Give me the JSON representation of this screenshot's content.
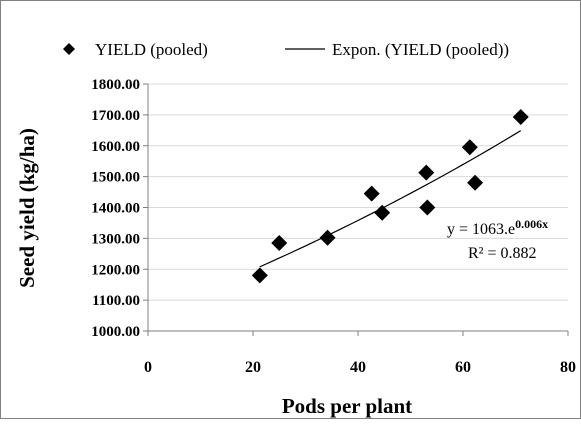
{
  "chart_data": {
    "type": "scatter",
    "title": "",
    "xlabel": "Pods per plant",
    "ylabel": "Seed yield (kg/ha)",
    "xlim": [
      0,
      80
    ],
    "ylim": [
      1000,
      1800
    ],
    "x_ticks": [
      "0",
      "20",
      "40",
      "60",
      "80"
    ],
    "y_ticks": [
      "1000.00",
      "1100.00",
      "1200.00",
      "1300.00",
      "1400.00",
      "1500.00",
      "1600.00",
      "1700.00",
      "1800.00"
    ],
    "grid": true,
    "legend_position": "top",
    "legend": {
      "series_label": "YIELD (pooled)",
      "trend_label": "Expon. (YIELD (pooled))"
    },
    "series": [
      {
        "name": "YIELD (pooled)",
        "marker": "diamond",
        "color": "#000000",
        "points": [
          {
            "x": 21.3,
            "y": 1180
          },
          {
            "x": 25.0,
            "y": 1285
          },
          {
            "x": 34.2,
            "y": 1302
          },
          {
            "x": 42.6,
            "y": 1445
          },
          {
            "x": 44.6,
            "y": 1383
          },
          {
            "x": 53.0,
            "y": 1513
          },
          {
            "x": 53.2,
            "y": 1400
          },
          {
            "x": 61.3,
            "y": 1595
          },
          {
            "x": 62.3,
            "y": 1480
          },
          {
            "x": 71.0,
            "y": 1693
          }
        ]
      }
    ],
    "trendline": {
      "type": "exponential",
      "x_range": [
        21.3,
        71.0
      ],
      "y_range": [
        1208,
        1649
      ]
    },
    "annotations": {
      "equation_main": "y = 1063.e",
      "equation_exponent": "0.006x",
      "r_squared": "R² = 0.882"
    },
    "colors": {
      "background": "#ffffff",
      "border": "#808080",
      "grid": "#d9d9d9",
      "marks": "#000000"
    }
  }
}
